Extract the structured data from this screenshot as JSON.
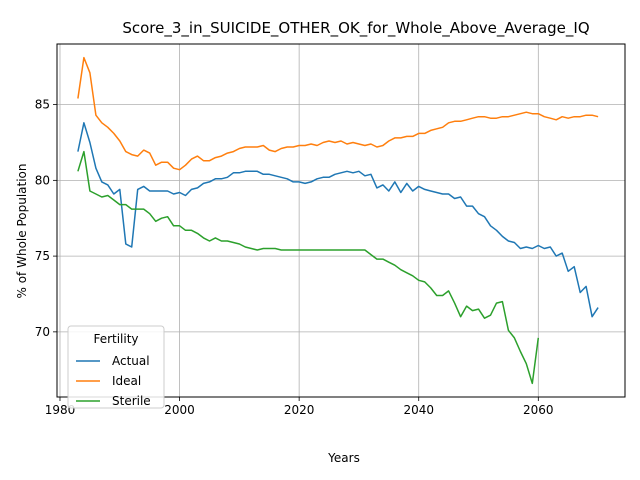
{
  "chart_data": {
    "type": "line",
    "title": "Score_3_in_SUICIDE_OTHER_OK_for_Whole_Above_Average_IQ",
    "xlabel": "Years",
    "ylabel": "% of Whole Population",
    "xlim": [
      1979.5,
      2074.5
    ],
    "ylim": [
      65.7,
      89.0
    ],
    "xticks": [
      1980,
      2000,
      2020,
      2040,
      2060
    ],
    "yticks": [
      70,
      75,
      80,
      85
    ],
    "grid": true,
    "legend": {
      "title": "Fertility",
      "position": "lower-left"
    },
    "series": [
      {
        "name": "Actual",
        "color": "#1f77b4",
        "points": [
          [
            1983,
            81.9
          ],
          [
            1984,
            83.8
          ],
          [
            1985,
            82.5
          ],
          [
            1986,
            80.8
          ],
          [
            1987,
            79.9
          ],
          [
            1988,
            79.7
          ],
          [
            1989,
            79.1
          ],
          [
            1990,
            79.4
          ],
          [
            1991,
            75.8
          ],
          [
            1992,
            75.6
          ],
          [
            1993,
            79.4
          ],
          [
            1994,
            79.6
          ],
          [
            1995,
            79.3
          ],
          [
            1996,
            79.3
          ],
          [
            1997,
            79.3
          ],
          [
            1998,
            79.3
          ],
          [
            1999,
            79.1
          ],
          [
            2000,
            79.2
          ],
          [
            2001,
            79.0
          ],
          [
            2002,
            79.4
          ],
          [
            2003,
            79.5
          ],
          [
            2004,
            79.8
          ],
          [
            2005,
            79.9
          ],
          [
            2006,
            80.1
          ],
          [
            2007,
            80.1
          ],
          [
            2008,
            80.2
          ],
          [
            2009,
            80.5
          ],
          [
            2010,
            80.5
          ],
          [
            2011,
            80.6
          ],
          [
            2012,
            80.6
          ],
          [
            2013,
            80.6
          ],
          [
            2014,
            80.4
          ],
          [
            2015,
            80.4
          ],
          [
            2016,
            80.3
          ],
          [
            2017,
            80.2
          ],
          [
            2018,
            80.1
          ],
          [
            2019,
            79.9
          ],
          [
            2020,
            79.9
          ],
          [
            2021,
            79.8
          ],
          [
            2022,
            79.9
          ],
          [
            2023,
            80.1
          ],
          [
            2024,
            80.2
          ],
          [
            2025,
            80.2
          ],
          [
            2026,
            80.4
          ],
          [
            2027,
            80.5
          ],
          [
            2028,
            80.6
          ],
          [
            2029,
            80.5
          ],
          [
            2030,
            80.6
          ],
          [
            2031,
            80.3
          ],
          [
            2032,
            80.4
          ],
          [
            2033,
            79.5
          ],
          [
            2034,
            79.7
          ],
          [
            2035,
            79.3
          ],
          [
            2036,
            79.9
          ],
          [
            2037,
            79.2
          ],
          [
            2038,
            79.8
          ],
          [
            2039,
            79.3
          ],
          [
            2040,
            79.6
          ],
          [
            2041,
            79.4
          ],
          [
            2042,
            79.3
          ],
          [
            2043,
            79.2
          ],
          [
            2044,
            79.1
          ],
          [
            2045,
            79.1
          ],
          [
            2046,
            78.8
          ],
          [
            2047,
            78.9
          ],
          [
            2048,
            78.3
          ],
          [
            2049,
            78.3
          ],
          [
            2050,
            77.8
          ],
          [
            2051,
            77.6
          ],
          [
            2052,
            77.0
          ],
          [
            2053,
            76.7
          ],
          [
            2054,
            76.3
          ],
          [
            2055,
            76.0
          ],
          [
            2056,
            75.9
          ],
          [
            2057,
            75.5
          ],
          [
            2058,
            75.6
          ],
          [
            2059,
            75.5
          ],
          [
            2060,
            75.7
          ],
          [
            2061,
            75.5
          ],
          [
            2062,
            75.6
          ],
          [
            2063,
            75.0
          ],
          [
            2064,
            75.2
          ],
          [
            2065,
            74.0
          ],
          [
            2066,
            74.3
          ],
          [
            2067,
            72.6
          ],
          [
            2068,
            73.0
          ],
          [
            2069,
            71.0
          ],
          [
            2070,
            71.6
          ]
        ]
      },
      {
        "name": "Ideal",
        "color": "#ff7f0e",
        "points": [
          [
            1983,
            85.4
          ],
          [
            1984,
            88.1
          ],
          [
            1985,
            87.1
          ],
          [
            1986,
            84.3
          ],
          [
            1987,
            83.8
          ],
          [
            1988,
            83.5
          ],
          [
            1989,
            83.1
          ],
          [
            1990,
            82.6
          ],
          [
            1991,
            81.9
          ],
          [
            1992,
            81.7
          ],
          [
            1993,
            81.6
          ],
          [
            1994,
            82.0
          ],
          [
            1995,
            81.8
          ],
          [
            1996,
            81.0
          ],
          [
            1997,
            81.2
          ],
          [
            1998,
            81.2
          ],
          [
            1999,
            80.8
          ],
          [
            2000,
            80.7
          ],
          [
            2001,
            81.0
          ],
          [
            2002,
            81.4
          ],
          [
            2003,
            81.6
          ],
          [
            2004,
            81.3
          ],
          [
            2005,
            81.3
          ],
          [
            2006,
            81.5
          ],
          [
            2007,
            81.6
          ],
          [
            2008,
            81.8
          ],
          [
            2009,
            81.9
          ],
          [
            2010,
            82.1
          ],
          [
            2011,
            82.2
          ],
          [
            2012,
            82.2
          ],
          [
            2013,
            82.2
          ],
          [
            2014,
            82.3
          ],
          [
            2015,
            82.0
          ],
          [
            2016,
            81.9
          ],
          [
            2017,
            82.1
          ],
          [
            2018,
            82.2
          ],
          [
            2019,
            82.2
          ],
          [
            2020,
            82.3
          ],
          [
            2021,
            82.3
          ],
          [
            2022,
            82.4
          ],
          [
            2023,
            82.3
          ],
          [
            2024,
            82.5
          ],
          [
            2025,
            82.6
          ],
          [
            2026,
            82.5
          ],
          [
            2027,
            82.6
          ],
          [
            2028,
            82.4
          ],
          [
            2029,
            82.5
          ],
          [
            2030,
            82.4
          ],
          [
            2031,
            82.3
          ],
          [
            2032,
            82.4
          ],
          [
            2033,
            82.2
          ],
          [
            2034,
            82.3
          ],
          [
            2035,
            82.6
          ],
          [
            2036,
            82.8
          ],
          [
            2037,
            82.8
          ],
          [
            2038,
            82.9
          ],
          [
            2039,
            82.9
          ],
          [
            2040,
            83.1
          ],
          [
            2041,
            83.1
          ],
          [
            2042,
            83.3
          ],
          [
            2043,
            83.4
          ],
          [
            2044,
            83.5
          ],
          [
            2045,
            83.8
          ],
          [
            2046,
            83.9
          ],
          [
            2047,
            83.9
          ],
          [
            2048,
            84.0
          ],
          [
            2049,
            84.1
          ],
          [
            2050,
            84.2
          ],
          [
            2051,
            84.2
          ],
          [
            2052,
            84.1
          ],
          [
            2053,
            84.1
          ],
          [
            2054,
            84.2
          ],
          [
            2055,
            84.2
          ],
          [
            2056,
            84.3
          ],
          [
            2057,
            84.4
          ],
          [
            2058,
            84.5
          ],
          [
            2059,
            84.4
          ],
          [
            2060,
            84.4
          ],
          [
            2061,
            84.2
          ],
          [
            2062,
            84.1
          ],
          [
            2063,
            84.0
          ],
          [
            2064,
            84.2
          ],
          [
            2065,
            84.1
          ],
          [
            2066,
            84.2
          ],
          [
            2067,
            84.2
          ],
          [
            2068,
            84.3
          ],
          [
            2069,
            84.3
          ],
          [
            2070,
            84.2
          ]
        ]
      },
      {
        "name": "Sterile",
        "color": "#2ca02c",
        "points": [
          [
            1983,
            80.6
          ],
          [
            1984,
            81.9
          ],
          [
            1985,
            79.3
          ],
          [
            1986,
            79.1
          ],
          [
            1987,
            78.9
          ],
          [
            1988,
            79.0
          ],
          [
            1989,
            78.7
          ],
          [
            1990,
            78.4
          ],
          [
            1991,
            78.4
          ],
          [
            1992,
            78.1
          ],
          [
            1993,
            78.1
          ],
          [
            1994,
            78.1
          ],
          [
            1995,
            77.8
          ],
          [
            1996,
            77.3
          ],
          [
            1997,
            77.5
          ],
          [
            1998,
            77.6
          ],
          [
            1999,
            77.0
          ],
          [
            2000,
            77.0
          ],
          [
            2001,
            76.7
          ],
          [
            2002,
            76.7
          ],
          [
            2003,
            76.5
          ],
          [
            2004,
            76.2
          ],
          [
            2005,
            76.0
          ],
          [
            2006,
            76.2
          ],
          [
            2007,
            76.0
          ],
          [
            2008,
            76.0
          ],
          [
            2009,
            75.9
          ],
          [
            2010,
            75.8
          ],
          [
            2011,
            75.6
          ],
          [
            2012,
            75.5
          ],
          [
            2013,
            75.4
          ],
          [
            2014,
            75.5
          ],
          [
            2015,
            75.5
          ],
          [
            2016,
            75.5
          ],
          [
            2017,
            75.4
          ],
          [
            2018,
            75.4
          ],
          [
            2019,
            75.4
          ],
          [
            2020,
            75.4
          ],
          [
            2021,
            75.4
          ],
          [
            2022,
            75.4
          ],
          [
            2023,
            75.4
          ],
          [
            2024,
            75.4
          ],
          [
            2025,
            75.4
          ],
          [
            2026,
            75.4
          ],
          [
            2027,
            75.4
          ],
          [
            2028,
            75.4
          ],
          [
            2029,
            75.4
          ],
          [
            2030,
            75.4
          ],
          [
            2031,
            75.4
          ],
          [
            2032,
            75.1
          ],
          [
            2033,
            74.8
          ],
          [
            2034,
            74.8
          ],
          [
            2035,
            74.6
          ],
          [
            2036,
            74.4
          ],
          [
            2037,
            74.1
          ],
          [
            2038,
            73.9
          ],
          [
            2039,
            73.7
          ],
          [
            2040,
            73.4
          ],
          [
            2041,
            73.3
          ],
          [
            2042,
            72.9
          ],
          [
            2043,
            72.4
          ],
          [
            2044,
            72.4
          ],
          [
            2045,
            72.7
          ],
          [
            2046,
            71.9
          ],
          [
            2047,
            71.0
          ],
          [
            2048,
            71.7
          ],
          [
            2049,
            71.4
          ],
          [
            2050,
            71.5
          ],
          [
            2051,
            70.9
          ],
          [
            2052,
            71.1
          ],
          [
            2053,
            71.9
          ],
          [
            2054,
            72.0
          ],
          [
            2055,
            70.1
          ],
          [
            2056,
            69.6
          ],
          [
            2057,
            68.7
          ],
          [
            2058,
            67.9
          ],
          [
            2059,
            66.6
          ],
          [
            2060,
            69.6
          ]
        ]
      }
    ]
  }
}
